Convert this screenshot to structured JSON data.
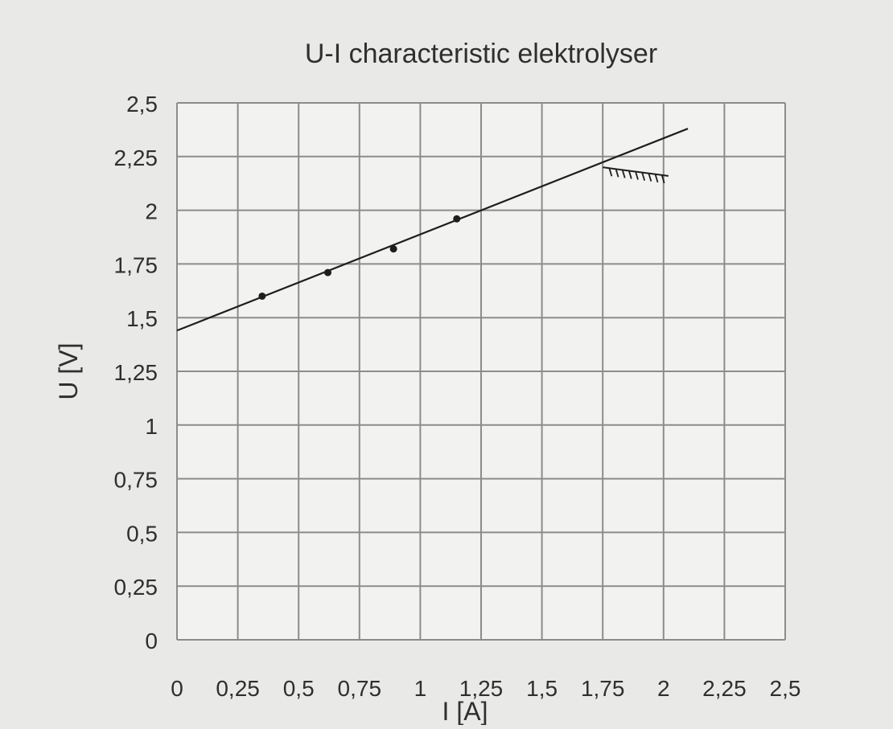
{
  "chart_data": {
    "type": "scatter",
    "title": "U-I characteristic elektrolyser",
    "xlabel": "I [A]",
    "ylabel": "U [V]",
    "xlim": [
      0,
      2.5
    ],
    "ylim": [
      0,
      2.5
    ],
    "xticks": [
      "0",
      "0,25",
      "0,5",
      "0,75",
      "1",
      "1,25",
      "1,5",
      "1,75",
      "2",
      "2,25",
      "2,5"
    ],
    "yticks": [
      "0",
      "0,25",
      "0,5",
      "0,75",
      "1",
      "1,25",
      "1,5",
      "1,75",
      "2",
      "2,25",
      "2,5"
    ],
    "grid": true,
    "series": [
      {
        "points": [
          {
            "x": 0.35,
            "y": 1.6
          },
          {
            "x": 0.62,
            "y": 1.71
          },
          {
            "x": 0.89,
            "y": 1.82
          },
          {
            "x": 1.15,
            "y": 1.96
          }
        ]
      }
    ],
    "trend_line": {
      "x": [
        0,
        2.1
      ],
      "y": [
        1.44,
        2.38
      ]
    },
    "annotation_marks": {
      "x": [
        1.75,
        2.02
      ],
      "y": [
        2.2,
        2.16
      ]
    },
    "colors": {
      "background": "#e9e9e7",
      "plot_area": "#f2f2f0",
      "grid": "#8c8c8c",
      "ink": "#1e1e1e"
    }
  }
}
